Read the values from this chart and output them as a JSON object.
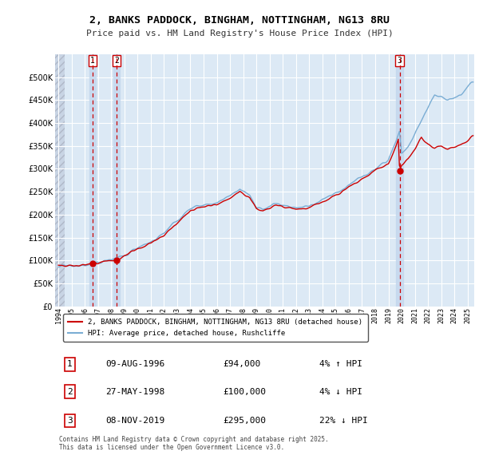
{
  "title_line1": "2, BANKS PADDOCK, BINGHAM, NOTTINGHAM, NG13 8RU",
  "title_line2": "Price paid vs. HM Land Registry's House Price Index (HPI)",
  "bg_color": "#ffffff",
  "plot_bg_color": "#dce9f5",
  "grid_color": "#ffffff",
  "sale_dates_num": [
    1996.61,
    1998.41,
    2019.85
  ],
  "sale_prices": [
    94000,
    100000,
    295000
  ],
  "sale_labels": [
    "1",
    "2",
    "3"
  ],
  "hpi_line_color": "#7aadd4",
  "price_line_color": "#cc0000",
  "dashed_line_color": "#cc0000",
  "shade_color": "#c5d8ee",
  "ylim": [
    0,
    550000
  ],
  "yticks": [
    0,
    50000,
    100000,
    150000,
    200000,
    250000,
    300000,
    350000,
    400000,
    450000,
    500000
  ],
  "xlim_start": 1993.75,
  "xlim_end": 2025.5,
  "xticks": [
    1994,
    1995,
    1996,
    1997,
    1998,
    1999,
    2000,
    2001,
    2002,
    2003,
    2004,
    2005,
    2006,
    2007,
    2008,
    2009,
    2010,
    2011,
    2012,
    2013,
    2014,
    2015,
    2016,
    2017,
    2018,
    2019,
    2020,
    2021,
    2022,
    2023,
    2024,
    2025
  ],
  "legend_label_red": "2, BANKS PADDOCK, BINGHAM, NOTTINGHAM, NG13 8RU (detached house)",
  "legend_label_blue": "HPI: Average price, detached house, Rushcliffe",
  "table_data": [
    [
      "1",
      "09-AUG-1996",
      "£94,000",
      "4% ↑ HPI"
    ],
    [
      "2",
      "27-MAY-1998",
      "£100,000",
      "4% ↓ HPI"
    ],
    [
      "3",
      "08-NOV-2019",
      "£295,000",
      "22% ↓ HPI"
    ]
  ],
  "footnote": "Contains HM Land Registry data © Crown copyright and database right 2025.\nThis data is licensed under the Open Government Licence v3.0."
}
